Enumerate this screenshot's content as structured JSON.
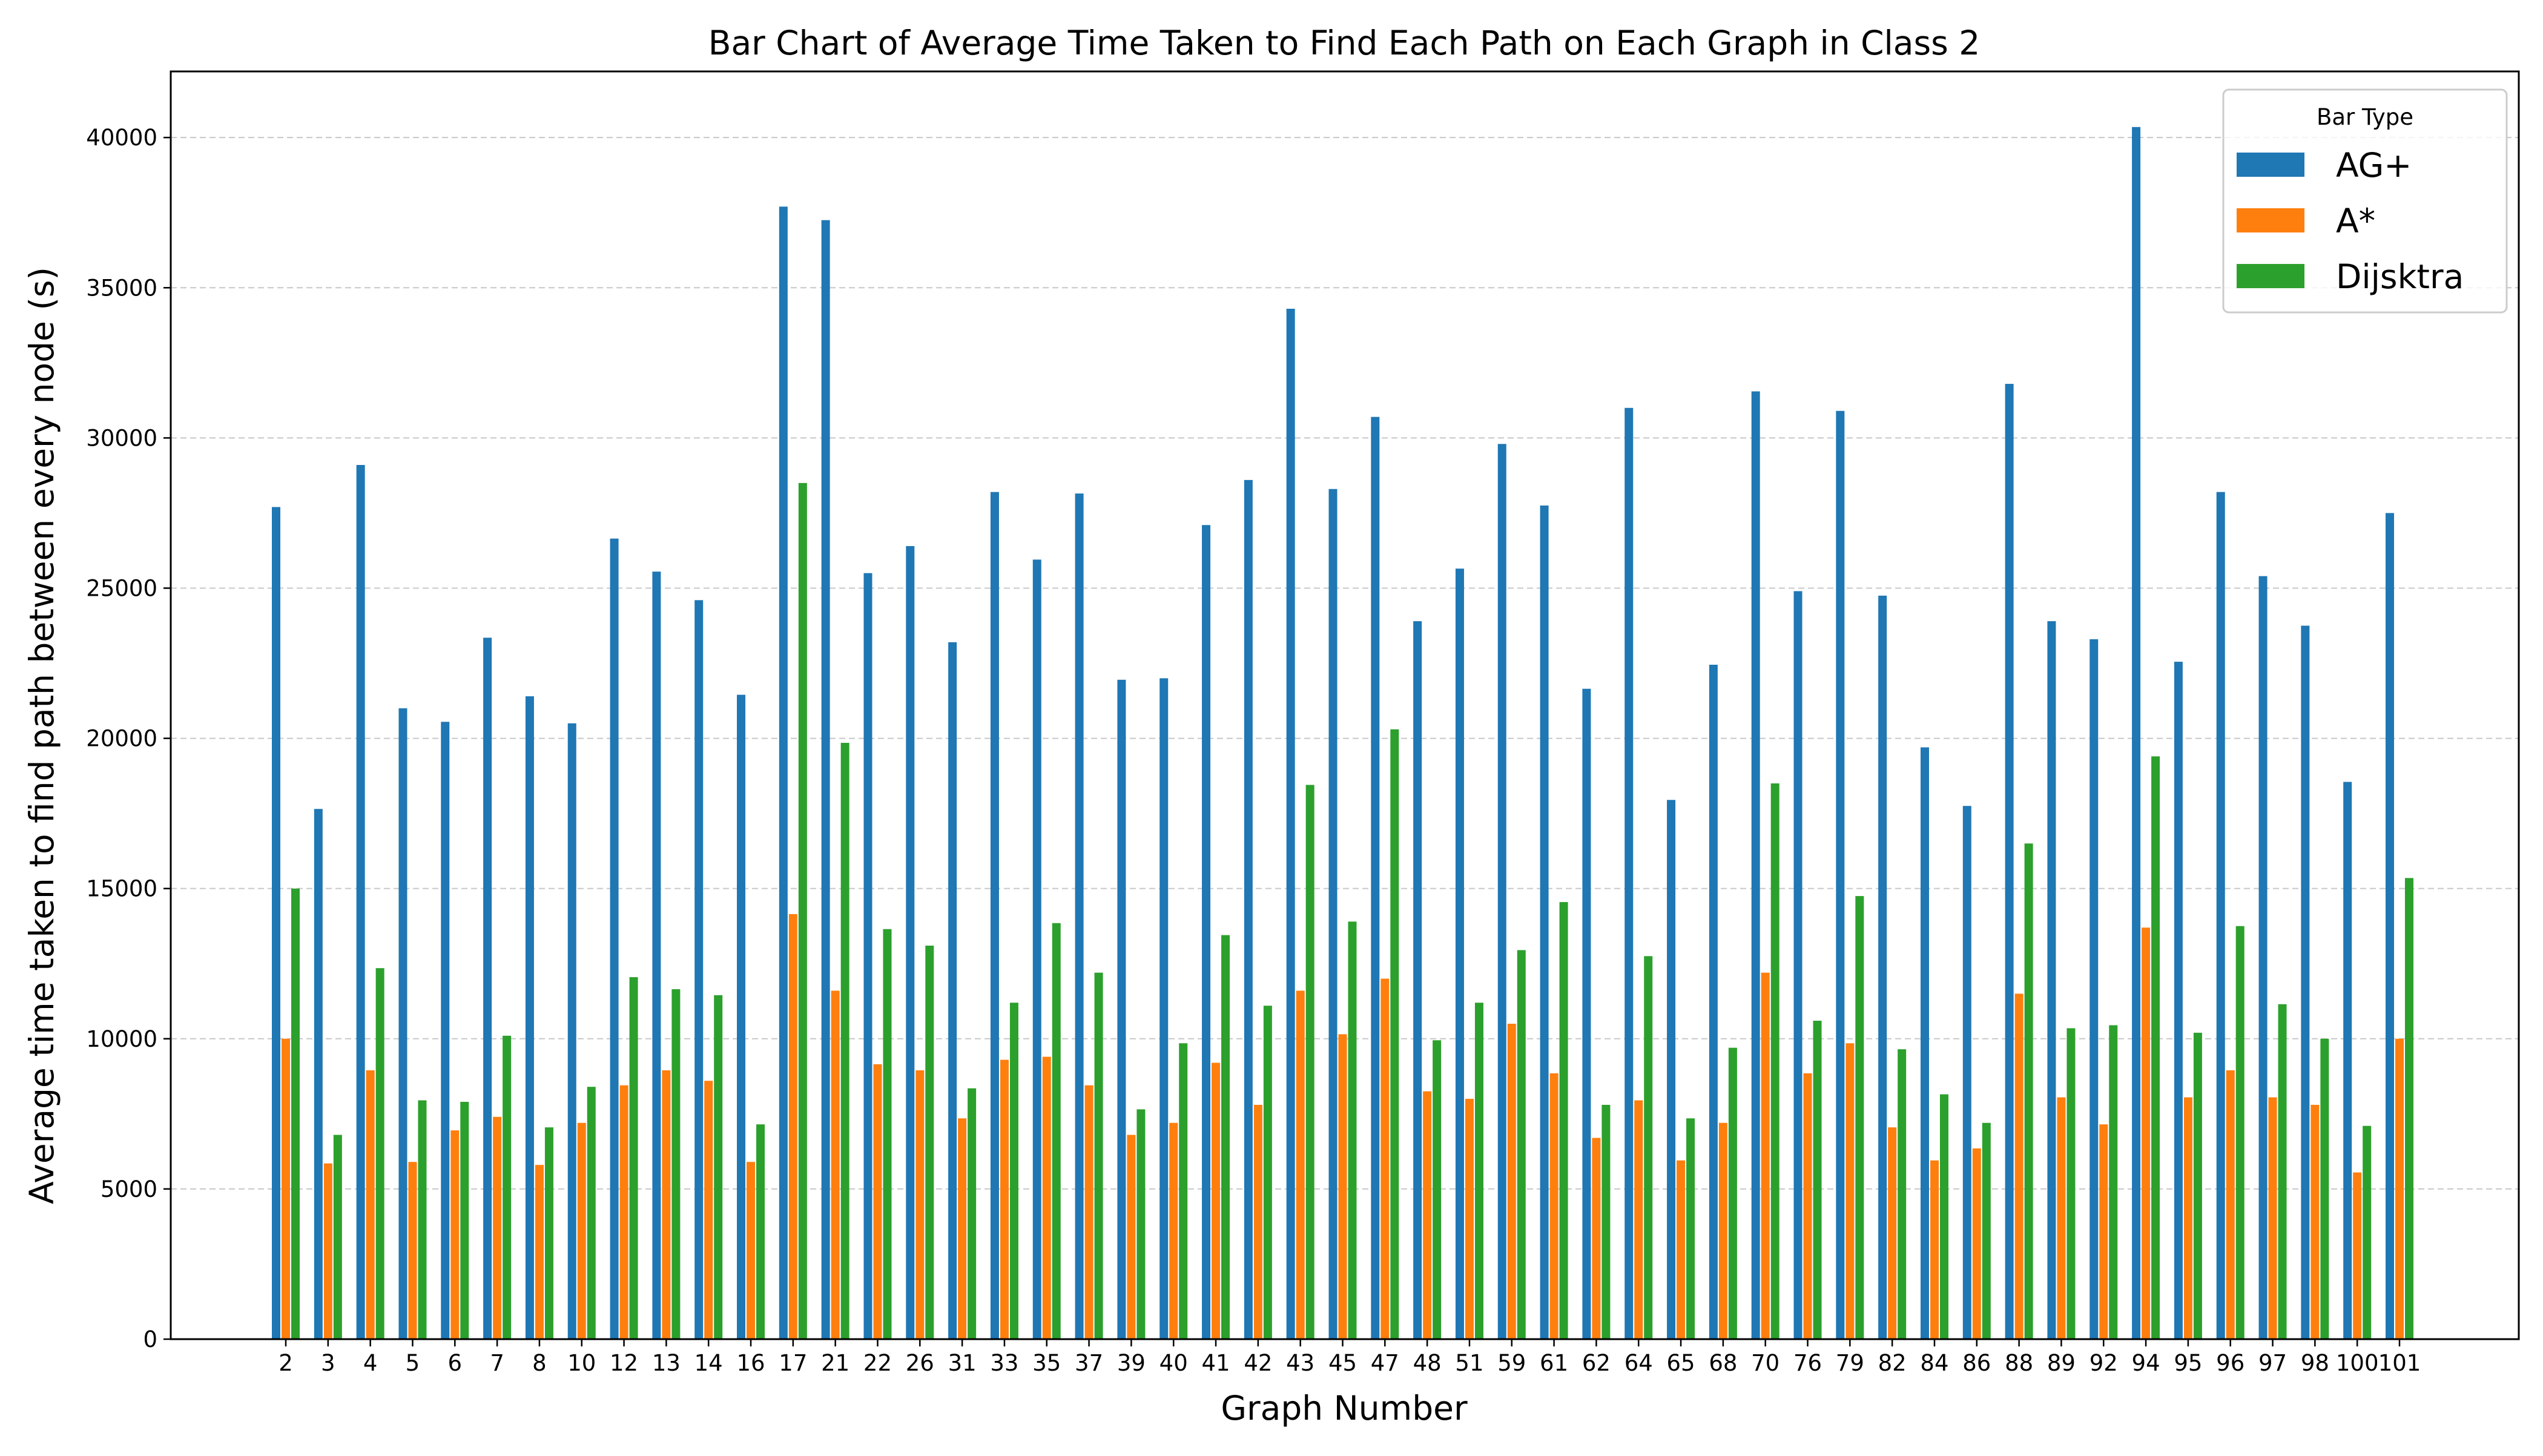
{
  "chart_data": {
    "type": "bar",
    "title": "Bar Chart of Average Time Taken to Find Each Path on Each Graph in Class 2",
    "xlabel": "Graph Number",
    "ylabel": "Average time taken to find path between every node (s)",
    "ylim": [
      0,
      42200
    ],
    "yticks": [
      0,
      5000,
      10000,
      15000,
      20000,
      25000,
      30000,
      35000,
      40000
    ],
    "grid": "y dashed",
    "legend": {
      "title": "Bar Type",
      "placement": "top-right"
    },
    "categories": [
      "2",
      "3",
      "4",
      "5",
      "6",
      "7",
      "8",
      "10",
      "12",
      "13",
      "14",
      "16",
      "17",
      "21",
      "22",
      "26",
      "31",
      "33",
      "35",
      "37",
      "39",
      "40",
      "41",
      "42",
      "43",
      "45",
      "47",
      "48",
      "51",
      "59",
      "61",
      "62",
      "64",
      "65",
      "68",
      "70",
      "76",
      "79",
      "82",
      "84",
      "86",
      "88",
      "89",
      "92",
      "94",
      "95",
      "96",
      "97",
      "98",
      "100",
      "101"
    ],
    "series": [
      {
        "name": "AG+",
        "color": "#1f77b4",
        "values": [
          27700,
          17650,
          29100,
          21000,
          20550,
          23350,
          21400,
          20500,
          26650,
          25550,
          24600,
          21450,
          37700,
          37250,
          25500,
          26400,
          23200,
          28200,
          25950,
          28150,
          21950,
          22000,
          27100,
          28600,
          34300,
          28300,
          30700,
          23900,
          25650,
          29800,
          27750,
          21650,
          31000,
          17950,
          22450,
          31550,
          24900,
          30900,
          24750,
          19700,
          17750,
          31800,
          23900,
          23300,
          40350,
          22550,
          28200,
          25400,
          23750,
          18550,
          27500
        ]
      },
      {
        "name": "A*",
        "color": "#ff7f0e",
        "values": [
          10000,
          5850,
          8950,
          5900,
          6950,
          7400,
          5800,
          7200,
          8450,
          8950,
          8600,
          5900,
          14150,
          11600,
          9150,
          8950,
          7350,
          9300,
          9400,
          8450,
          6800,
          7200,
          9200,
          7800,
          11600,
          10150,
          12000,
          8250,
          8000,
          10500,
          8850,
          6700,
          7950,
          5950,
          7200,
          12200,
          8850,
          9850,
          7050,
          5950,
          6350,
          11500,
          8050,
          7150,
          13700,
          8050,
          8950,
          8050,
          7800,
          5550,
          10000
        ]
      },
      {
        "name": "Dijsktra",
        "color": "#2ca02c",
        "values": [
          15000,
          6800,
          12350,
          7950,
          7900,
          10100,
          7050,
          8400,
          12050,
          11650,
          11450,
          7150,
          28500,
          19850,
          13650,
          13100,
          8350,
          11200,
          13850,
          12200,
          7650,
          9850,
          13450,
          11100,
          18450,
          13900,
          20300,
          9950,
          11200,
          12950,
          14550,
          7800,
          12750,
          7350,
          9700,
          18500,
          10600,
          14750,
          9650,
          8150,
          7200,
          16500,
          10350,
          10450,
          19400,
          10200,
          13750,
          11150,
          10000,
          7100,
          15350
        ]
      }
    ]
  }
}
